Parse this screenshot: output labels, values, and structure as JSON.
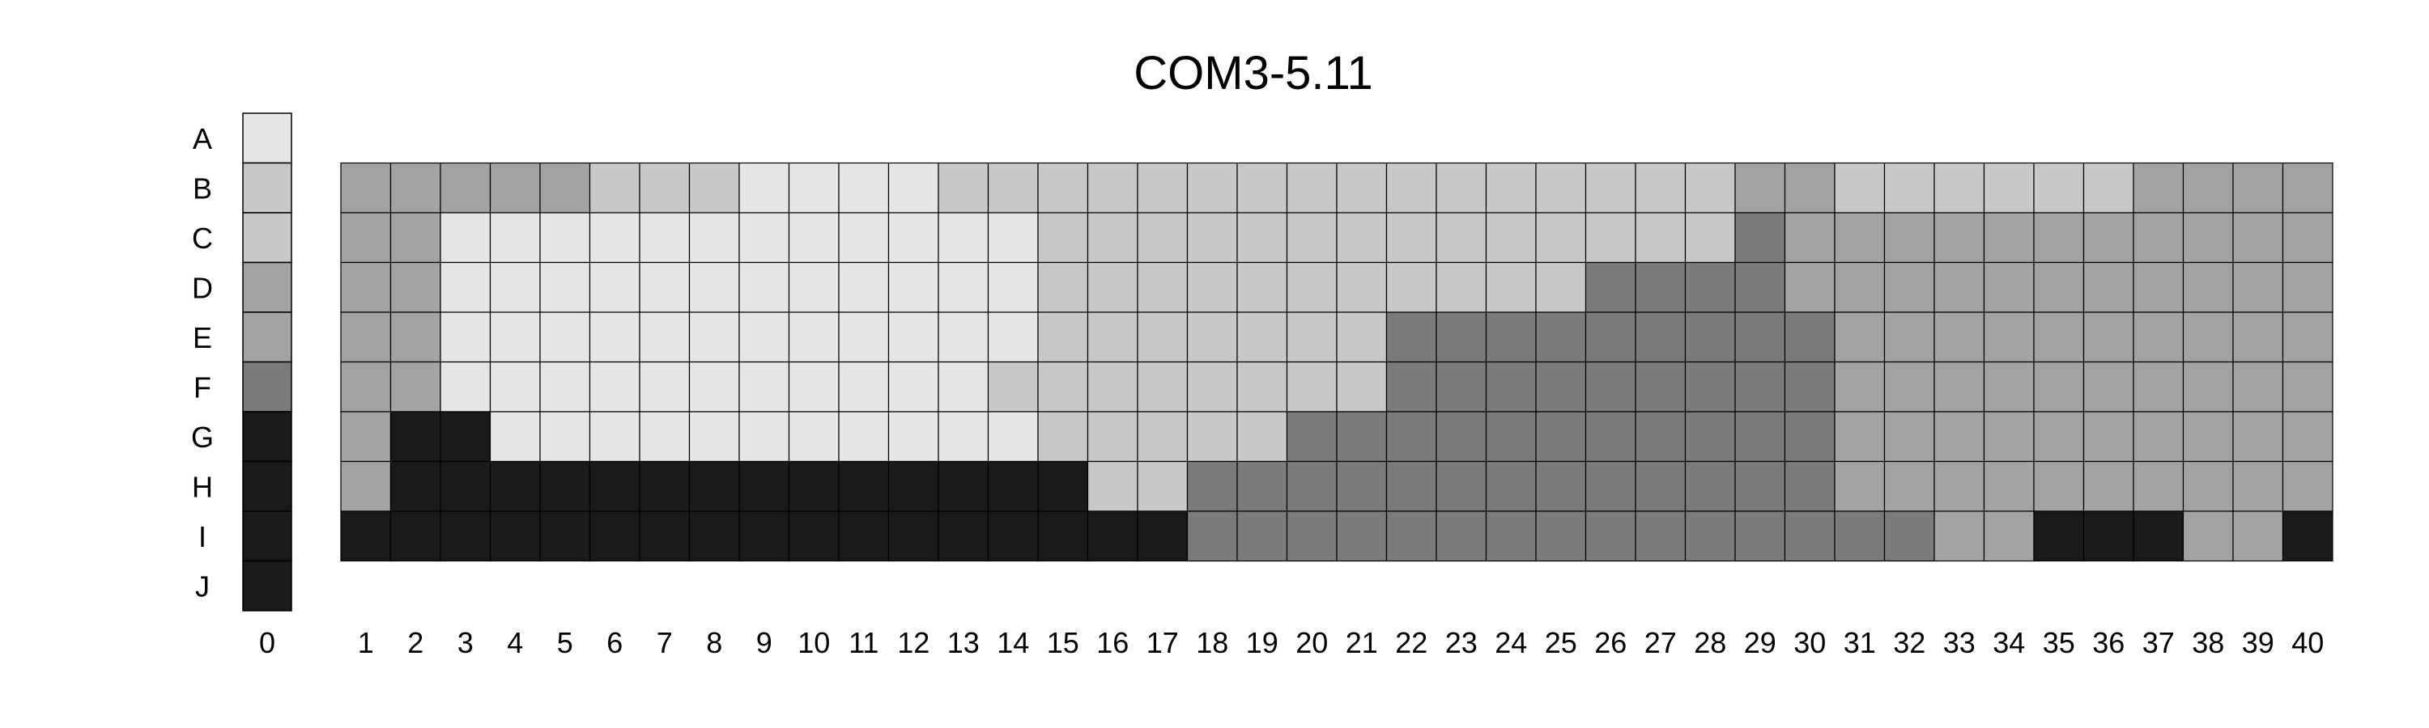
{
  "chart_data": {
    "type": "heatmap",
    "title": "COM3-5.11",
    "rows": [
      "A",
      "B",
      "C",
      "D",
      "E",
      "F",
      "G",
      "H",
      "I",
      "J"
    ],
    "columns": [
      "1",
      "2",
      "3",
      "4",
      "5",
      "6",
      "7",
      "8",
      "9",
      "10",
      "11",
      "12",
      "13",
      "14",
      "15",
      "16",
      "17",
      "18",
      "19",
      "20",
      "21",
      "22",
      "23",
      "24",
      "25",
      "26",
      "27",
      "28",
      "29",
      "30",
      "31",
      "32",
      "33",
      "34",
      "35",
      "36",
      "37",
      "38",
      "39",
      "40"
    ],
    "legend_label": "0",
    "legend_levels": [
      1,
      2,
      2,
      3,
      3,
      4,
      5,
      5,
      5,
      5
    ],
    "values": [
      [
        3,
        3,
        3,
        3,
        3,
        2,
        2,
        2,
        1,
        1,
        1,
        1,
        2,
        2,
        2,
        2,
        2,
        2,
        2,
        2,
        2,
        2,
        2,
        2,
        2,
        2,
        2,
        2,
        3,
        3,
        2,
        2,
        2,
        2,
        2,
        2,
        3,
        3,
        3,
        3
      ],
      [
        3,
        3,
        1,
        1,
        1,
        1,
        1,
        1,
        1,
        1,
        1,
        1,
        1,
        1,
        2,
        2,
        2,
        2,
        2,
        2,
        2,
        2,
        2,
        2,
        2,
        2,
        2,
        2,
        4,
        3,
        3,
        3,
        3,
        3,
        3,
        3,
        3,
        3,
        3,
        3
      ],
      [
        3,
        3,
        1,
        1,
        1,
        1,
        1,
        1,
        1,
        1,
        1,
        1,
        1,
        1,
        2,
        2,
        2,
        2,
        2,
        2,
        2,
        2,
        2,
        2,
        2,
        4,
        4,
        4,
        4,
        3,
        3,
        3,
        3,
        3,
        3,
        3,
        3,
        3,
        3,
        3
      ],
      [
        3,
        3,
        1,
        1,
        1,
        1,
        1,
        1,
        1,
        1,
        1,
        1,
        1,
        1,
        2,
        2,
        2,
        2,
        2,
        2,
        2,
        4,
        4,
        4,
        4,
        4,
        4,
        4,
        4,
        4,
        3,
        3,
        3,
        3,
        3,
        3,
        3,
        3,
        3,
        3
      ],
      [
        3,
        3,
        1,
        1,
        1,
        1,
        1,
        1,
        1,
        1,
        1,
        1,
        1,
        2,
        2,
        2,
        2,
        2,
        2,
        2,
        2,
        4,
        4,
        4,
        4,
        4,
        4,
        4,
        4,
        4,
        3,
        3,
        3,
        3,
        3,
        3,
        3,
        3,
        3,
        3
      ],
      [
        3,
        5,
        5,
        1,
        1,
        1,
        1,
        1,
        1,
        1,
        1,
        1,
        1,
        1,
        2,
        2,
        2,
        2,
        2,
        4,
        4,
        4,
        4,
        4,
        4,
        4,
        4,
        4,
        4,
        4,
        3,
        3,
        3,
        3,
        3,
        3,
        3,
        3,
        3,
        3
      ],
      [
        3,
        5,
        5,
        5,
        5,
        5,
        5,
        5,
        5,
        5,
        5,
        5,
        5,
        5,
        5,
        2,
        2,
        4,
        4,
        4,
        4,
        4,
        4,
        4,
        4,
        4,
        4,
        4,
        4,
        4,
        3,
        3,
        3,
        3,
        3,
        3,
        3,
        3,
        3,
        3
      ],
      [
        5,
        5,
        5,
        5,
        5,
        5,
        5,
        5,
        5,
        5,
        5,
        5,
        5,
        5,
        5,
        5,
        5,
        4,
        4,
        4,
        4,
        4,
        4,
        4,
        4,
        4,
        4,
        4,
        4,
        4,
        4,
        4,
        3,
        3,
        5,
        5,
        5,
        3,
        3,
        5
      ]
    ],
    "value_rows": [
      "B",
      "C",
      "D",
      "E",
      "F",
      "G",
      "H",
      "I"
    ],
    "palette": {
      "1": "#e6e6e6",
      "2": "#c8c8c8",
      "3": "#a3a3a3",
      "4": "#7b7b7b",
      "5": "#1a1a1a"
    },
    "grid": true,
    "legend_placement": "left"
  }
}
